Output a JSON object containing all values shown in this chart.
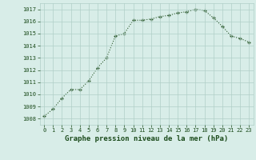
{
  "x": [
    0,
    1,
    2,
    3,
    4,
    5,
    6,
    7,
    8,
    9,
    10,
    11,
    12,
    13,
    14,
    15,
    16,
    17,
    18,
    19,
    20,
    21,
    22,
    23
  ],
  "y": [
    1008.2,
    1008.8,
    1009.7,
    1010.4,
    1010.4,
    1011.1,
    1012.2,
    1013.0,
    1014.8,
    1015.0,
    1016.1,
    1016.1,
    1016.2,
    1016.4,
    1016.5,
    1016.7,
    1016.8,
    1017.0,
    1016.9,
    1016.3,
    1015.6,
    1014.8,
    1014.6,
    1014.3
  ],
  "line_color": "#2d5a2d",
  "marker": "+",
  "bg_color": "#d8ede8",
  "grid_color": "#b0cfc8",
  "xlabel": "Graphe pression niveau de la mer (hPa)",
  "xlabel_color": "#1a4a1a",
  "ylim": [
    1007.5,
    1017.5
  ],
  "yticks": [
    1008,
    1009,
    1010,
    1011,
    1012,
    1013,
    1014,
    1015,
    1016,
    1017
  ],
  "xticks": [
    0,
    1,
    2,
    3,
    4,
    5,
    6,
    7,
    8,
    9,
    10,
    11,
    12,
    13,
    14,
    15,
    16,
    17,
    18,
    19,
    20,
    21,
    22,
    23
  ],
  "tick_color": "#1a4a1a",
  "tick_fontsize": 5.0,
  "xlabel_fontsize": 6.5,
  "linewidth": 0.8,
  "markersize": 3.5,
  "xlim": [
    -0.5,
    23.5
  ]
}
